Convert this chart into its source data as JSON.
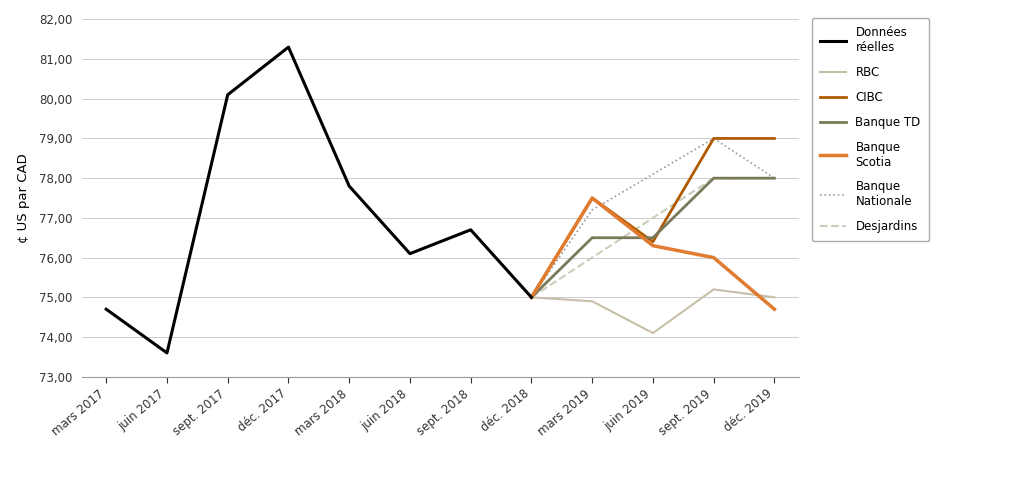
{
  "ylabel": "¢ US par CAD",
  "ylim": [
    73.0,
    82.0
  ],
  "yticks": [
    73.0,
    74.0,
    75.0,
    76.0,
    77.0,
    78.0,
    79.0,
    80.0,
    81.0,
    82.0
  ],
  "xtick_labels": [
    "mars 2017",
    "juin 2017",
    "sept. 2017",
    "déc. 2017",
    "mars 2018",
    "juin 2018",
    "sept. 2018",
    "déc. 2018",
    "mars 2019",
    "juin 2019",
    "sept. 2019",
    "déc. 2019"
  ],
  "actual_data": {
    "x": [
      0,
      1,
      2,
      3,
      4,
      5,
      6,
      7
    ],
    "y": [
      74.7,
      73.6,
      80.1,
      81.3,
      77.8,
      76.1,
      76.7,
      75.0
    ],
    "color": "#000000",
    "linewidth": 2.2,
    "label": "Données\nréelles"
  },
  "rbc": {
    "x": [
      7,
      8,
      9,
      10,
      11
    ],
    "y": [
      75.0,
      74.9,
      74.1,
      75.2,
      75.0
    ],
    "color": "#c8bfaa",
    "linewidth": 1.5,
    "label": "RBC"
  },
  "cibc": {
    "x": [
      7,
      8,
      9,
      10,
      11
    ],
    "y": [
      75.0,
      77.5,
      76.4,
      79.0,
      79.0
    ],
    "color": "#b05a00",
    "linewidth": 2.0,
    "label": "CIBC"
  },
  "td": {
    "x": [
      7,
      8,
      9,
      10,
      11
    ],
    "y": [
      75.0,
      76.5,
      76.5,
      78.0,
      78.0
    ],
    "color": "#7a7a5a",
    "linewidth": 2.0,
    "label": "Banque TD"
  },
  "scotia": {
    "x": [
      7,
      8,
      9,
      10,
      11
    ],
    "y": [
      75.0,
      77.5,
      76.3,
      76.0,
      74.7
    ],
    "color": "#e07b30",
    "linewidth": 2.5,
    "label": "Banque\nScotia"
  },
  "nationale": {
    "x": [
      7,
      8,
      10,
      11
    ],
    "y": [
      75.0,
      77.2,
      79.0,
      78.0
    ],
    "color": "#999999",
    "linewidth": 1.2,
    "linestyle": "dotted",
    "label": "Banque\nNationale"
  },
  "desjardins": {
    "x": [
      7,
      8,
      10,
      11
    ],
    "y": [
      75.0,
      76.0,
      78.0,
      78.0
    ],
    "color": "#ccccbb",
    "linewidth": 1.5,
    "linestyle": "dashed",
    "label": "Desjardins"
  },
  "background_color": "#ffffff",
  "grid_color": "#cccccc",
  "figsize": [
    10.24,
    4.83
  ],
  "dpi": 100
}
